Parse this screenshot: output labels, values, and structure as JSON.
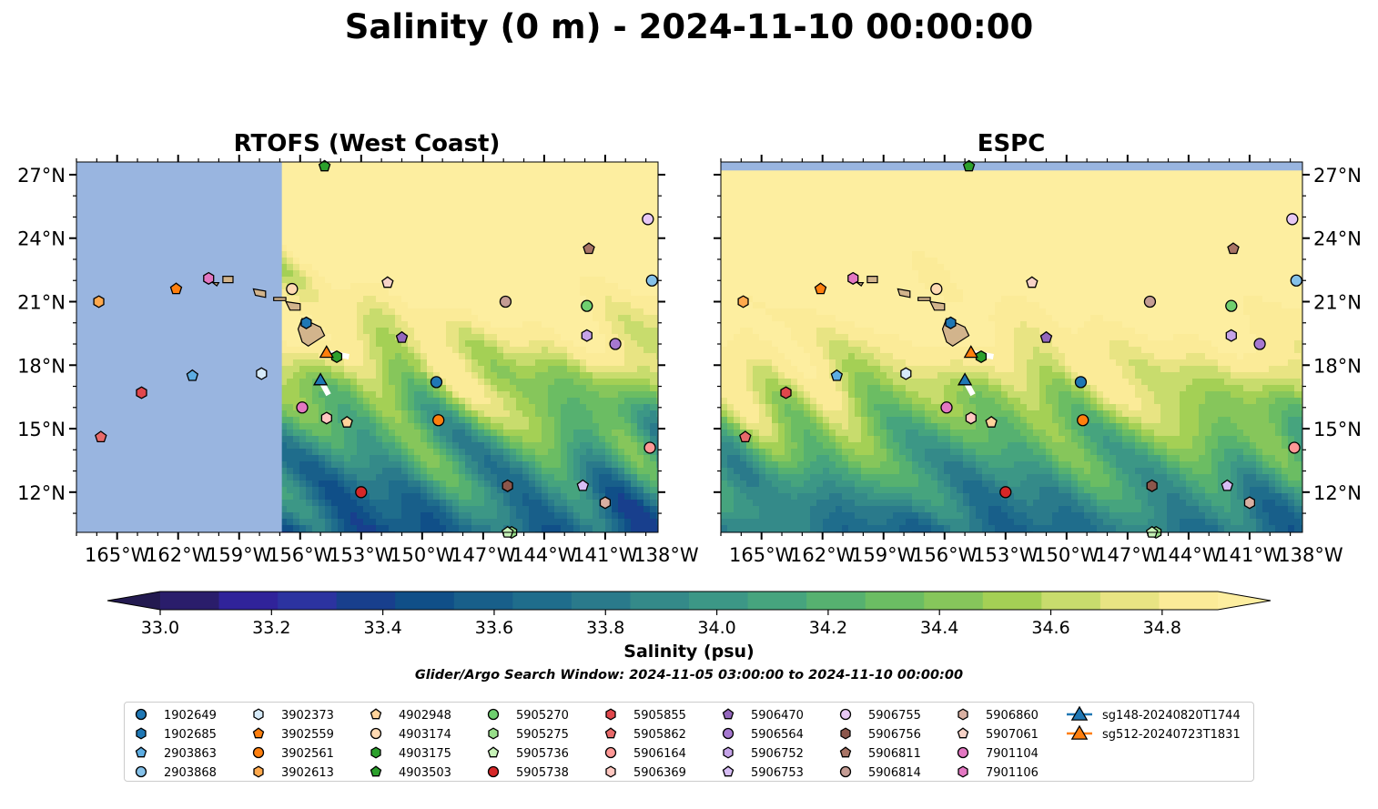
{
  "figure": {
    "suptitle": "Salinity (0 m) - 2024-11-10 00:00:00",
    "colorbar_label": "Salinity (psu)",
    "search_window": "Glider/Argo Search Window: 2024-11-05 03:00:00 to 2024-11-10 00:00:00"
  },
  "chart_data": {
    "type": "heatmap",
    "panels": [
      {
        "title": "RTOFS (West Coast)",
        "model_domain_west_lon": -156.9,
        "ocean_fill_outside_domain": "#99b5e0"
      },
      {
        "title": "ESPC",
        "model_domain_north_lat": 27.2,
        "ocean_fill_outside_domain": "#99b5e0"
      }
    ],
    "x_ticks": [
      -165,
      -162,
      -159,
      -156,
      -153,
      -150,
      -147,
      -144,
      -141,
      -138
    ],
    "x_tick_labels": [
      "165°W",
      "162°W",
      "159°W",
      "156°W",
      "153°W",
      "150°W",
      "147°W",
      "144°W",
      "141°W",
      "138°W"
    ],
    "y_ticks": [
      12,
      15,
      18,
      21,
      24,
      27
    ],
    "y_tick_labels": [
      "12°N",
      "15°N",
      "18°N",
      "21°N",
      "24°N",
      "27°N"
    ],
    "xlim": [
      -167,
      -138.4
    ],
    "ylim": [
      10.1,
      27.6
    ],
    "colorbar": {
      "min": 33.0,
      "max": 34.9,
      "step": 0.1,
      "extend": "both",
      "ticks": [
        33.0,
        33.2,
        33.4,
        33.6,
        33.8,
        34.0,
        34.2,
        34.4,
        34.6,
        34.8
      ],
      "tick_labels": [
        "33.0",
        "33.2",
        "33.4",
        "33.6",
        "33.8",
        "34.0",
        "34.2",
        "34.4",
        "34.6",
        "34.8"
      ],
      "colors": [
        "#2a1d6b",
        "#30239a",
        "#2c33a0",
        "#183f8d",
        "#104f88",
        "#185f8a",
        "#1f6d8c",
        "#2a7a8b",
        "#348a89",
        "#3c9786",
        "#46a47e",
        "#56b170",
        "#6bbd63",
        "#86c65b",
        "#a4d055",
        "#c8dc6d",
        "#e8e483",
        "#fbeb98"
      ],
      "under_color": "#231a50",
      "over_color": "#fdeea0"
    },
    "land_color": "#d2b48c",
    "glider_track_color": "#ffffff",
    "observations": [
      {
        "id": "1902649",
        "lon": -149.3,
        "lat": 17.2,
        "marker": "circle",
        "color": "#1f77b4"
      },
      {
        "id": "1902685",
        "lon": -155.7,
        "lat": 20.0,
        "marker": "hexagon",
        "color": "#1f77b4"
      },
      {
        "id": "2903863",
        "lon": -161.3,
        "lat": 17.5,
        "marker": "pentagon",
        "color": "#5dade2"
      },
      {
        "id": "2903868",
        "lon": -138.7,
        "lat": 22.0,
        "marker": "circle",
        "color": "#85c1e9"
      },
      {
        "id": "3902373",
        "lon": -157.9,
        "lat": 17.6,
        "marker": "hexagon",
        "color": "#d6eaf8"
      },
      {
        "id": "3902559",
        "lon": -162.1,
        "lat": 21.6,
        "marker": "pentagon",
        "color": "#ff7f0e"
      },
      {
        "id": "3902561",
        "lon": -149.2,
        "lat": 15.4,
        "marker": "circle",
        "color": "#ff7f0e"
      },
      {
        "id": "3902613",
        "lon": -165.9,
        "lat": 21.0,
        "marker": "hexagon",
        "color": "#ffa94d"
      },
      {
        "id": "4902948",
        "lon": -153.7,
        "lat": 15.3,
        "marker": "pentagon",
        "color": "#ffd39b"
      },
      {
        "id": "4903174",
        "lon": -156.4,
        "lat": 21.6,
        "marker": "circle",
        "color": "#ffdab3"
      },
      {
        "id": "4903175",
        "lon": -154.2,
        "lat": 18.4,
        "marker": "hexagon",
        "color": "#2ca02c"
      },
      {
        "id": "4903503",
        "lon": -154.8,
        "lat": 27.4,
        "marker": "pentagon",
        "color": "#2ca02c"
      },
      {
        "id": "5905270",
        "lon": -141.9,
        "lat": 20.8,
        "marker": "circle",
        "color": "#6fcf6f"
      },
      {
        "id": "5905275",
        "lon": -145.6,
        "lat": 10.1,
        "marker": "hexagon",
        "color": "#98df8a"
      },
      {
        "id": "5905736",
        "lon": -145.8,
        "lat": 10.1,
        "marker": "pentagon",
        "color": "#c7f3b8"
      },
      {
        "id": "5905738",
        "lon": -153.0,
        "lat": 12.0,
        "marker": "circle",
        "color": "#d62728"
      },
      {
        "id": "5905855",
        "lon": -163.8,
        "lat": 16.7,
        "marker": "hexagon",
        "color": "#e0474c"
      },
      {
        "id": "5905862",
        "lon": -165.8,
        "lat": 14.6,
        "marker": "pentagon",
        "color": "#e86a6a"
      },
      {
        "id": "5906164",
        "lon": -138.8,
        "lat": 14.1,
        "marker": "circle",
        "color": "#ff9896"
      },
      {
        "id": "5906369",
        "lon": -154.7,
        "lat": 15.5,
        "marker": "hexagon",
        "color": "#ffc7c0"
      },
      {
        "id": "5906470",
        "lon": -151.0,
        "lat": 19.3,
        "marker": "pentagon",
        "color": "#9467bd"
      },
      {
        "id": "5906564",
        "lon": -140.5,
        "lat": 19.0,
        "marker": "circle",
        "color": "#a678d0"
      },
      {
        "id": "5906752",
        "lon": -141.9,
        "lat": 19.4,
        "marker": "hexagon",
        "color": "#c5a3e8"
      },
      {
        "id": "5906753",
        "lon": -142.1,
        "lat": 12.3,
        "marker": "pentagon",
        "color": "#d7bdf5"
      },
      {
        "id": "5906755",
        "lon": -138.9,
        "lat": 24.9,
        "marker": "circle",
        "color": "#e7c8f5"
      },
      {
        "id": "5906756",
        "lon": -145.8,
        "lat": 12.3,
        "marker": "hexagon",
        "color": "#8c564b"
      },
      {
        "id": "5906811",
        "lon": -141.8,
        "lat": 23.5,
        "marker": "pentagon",
        "color": "#a87466"
      },
      {
        "id": "5906814",
        "lon": -145.9,
        "lat": 21.0,
        "marker": "circle",
        "color": "#c49c94"
      },
      {
        "id": "5906860",
        "lon": -141.0,
        "lat": 11.5,
        "marker": "hexagon",
        "color": "#d9b0a2"
      },
      {
        "id": "5907061",
        "lon": -151.7,
        "lat": 21.9,
        "marker": "pentagon",
        "color": "#f7d3c8"
      },
      {
        "id": "7901104",
        "lon": -155.9,
        "lat": 16.0,
        "marker": "circle",
        "color": "#e377c2"
      },
      {
        "id": "7901106",
        "lon": -160.5,
        "lat": 22.1,
        "marker": "hexagon",
        "color": "#e377c2"
      },
      {
        "id": "sg148-20240820T1744",
        "lon": -155.0,
        "lat": 17.3,
        "marker": "triangle",
        "color": "#1f77b4",
        "track": [
          [
            -155.0,
            17.3
          ],
          [
            -154.6,
            16.6
          ]
        ]
      },
      {
        "id": "sg512-20240723T1831",
        "lon": -154.7,
        "lat": 18.6,
        "marker": "triangle",
        "color": "#ff7f0e",
        "track": [
          [
            -154.7,
            18.6
          ],
          [
            -153.6,
            18.4
          ]
        ]
      }
    ]
  }
}
